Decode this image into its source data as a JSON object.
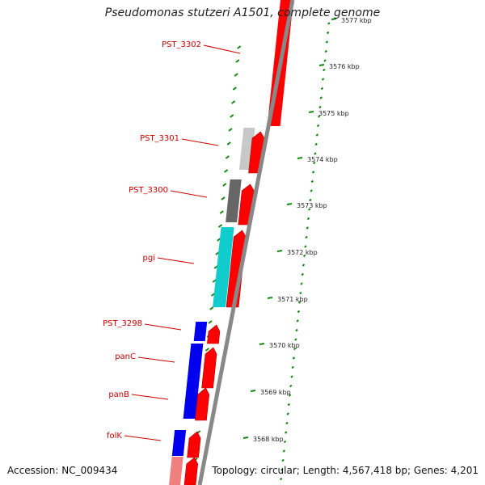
{
  "title": "Pseudomonas stutzeri A1501, complete genome",
  "accession": "Accession: NC_009434",
  "topology": "Topology: circular; Length: 4,567,418 bp; Genes: 4,201",
  "colors": {
    "forward_cds": "#ff0000",
    "reverse_blue": "#0000ee",
    "reverse_cyan": "#11cccc",
    "reverse_dark": "#666666",
    "reverse_light": "#c8c8c8",
    "reverse_pink": "#f08080",
    "tick_green": "#118811",
    "backbone": "#888888",
    "label_red": "#cc0000"
  },
  "gene_labels": [
    "PST_3302",
    "PST_3301",
    "PST_3300",
    "pgi",
    "PST_3298",
    "panC",
    "panB",
    "folK"
  ],
  "tick_labels": [
    "3577 kbp",
    "3576 kbp",
    "3575 kbp",
    "3574 kbp",
    "3573 kbp",
    "3572 kbp",
    "3571 kbp",
    "3570 kbp",
    "3569 kbp",
    "3568 kbp"
  ]
}
